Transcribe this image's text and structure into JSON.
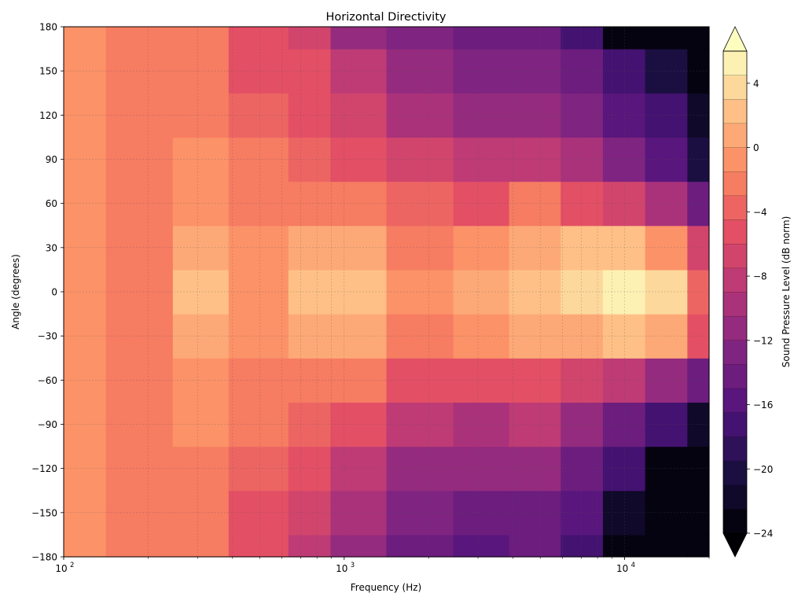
{
  "chart_data": {
    "type": "heatmap",
    "title": "Horizontal Directivity",
    "xlabel": "Frequency (Hz)",
    "ylabel": "Angle (degrees)",
    "x_scale": "log",
    "xlim": [
      100,
      20000
    ],
    "ylim": [
      -180,
      180
    ],
    "x_ticks": [
      {
        "value": 100,
        "base": "10",
        "exp": "2"
      },
      {
        "value": 1000,
        "base": "10",
        "exp": "3"
      },
      {
        "value": 10000,
        "base": "10",
        "exp": "4"
      }
    ],
    "y_ticks": [
      180,
      150,
      120,
      90,
      60,
      30,
      0,
      -30,
      -60,
      -90,
      -120,
      -150,
      -180
    ],
    "y_tick_labels": [
      "180",
      "150",
      "120",
      "90",
      "60",
      "30",
      "0",
      "−30",
      "−60",
      "−90",
      "−120",
      "−150",
      "−180"
    ],
    "grid": true,
    "colormap": "magma",
    "colorbar": {
      "label": "Sound Pressure Level (dB norm)",
      "range": [
        -24,
        6
      ],
      "level_step": 1.5,
      "extend": "both",
      "ticks": [
        4,
        0,
        -4,
        -8,
        -12,
        -16,
        -20,
        -24
      ],
      "tick_labels": [
        "4",
        "0",
        "−4",
        "−8",
        "−12",
        "−16",
        "−20",
        "−24"
      ]
    },
    "grid_x": [
      100,
      200,
      300,
      500,
      800,
      1000,
      2000,
      3000,
      5000,
      7000,
      10000,
      14000,
      20000
    ],
    "grid_y": [
      -180,
      -150,
      -120,
      -90,
      -60,
      -30,
      0,
      30,
      60,
      90,
      120,
      150,
      180
    ],
    "values": [
      [
        -1.5,
        -2.5,
        -3,
        -5,
        -8,
        -12,
        -14,
        -16,
        -15,
        -18,
        -24,
        -24,
        -24
      ],
      [
        -1.5,
        -2.5,
        -3,
        -5,
        -7,
        -10,
        -13,
        -14,
        -14,
        -16,
        -22,
        -24,
        -24
      ],
      [
        -1.5,
        -2.5,
        -2.5,
        -4,
        -6,
        -8,
        -11,
        -12,
        -12,
        -14,
        -18,
        -24,
        -24
      ],
      [
        -1.5,
        -2.5,
        -1.5,
        -3,
        -4,
        -6,
        -9,
        -10,
        -9,
        -11,
        -14,
        -18,
        -22
      ],
      [
        -1.5,
        -2.5,
        -1,
        -2,
        -2,
        -3,
        -5,
        -6,
        -5,
        -7,
        -9,
        -11,
        -15
      ],
      [
        -1.5,
        -2.5,
        0.5,
        -1.5,
        0.5,
        0,
        -2,
        -1.5,
        0,
        0,
        1.5,
        0,
        -6
      ],
      [
        -1.5,
        -2,
        1.5,
        -1.5,
        1.5,
        1.5,
        -1.5,
        0,
        1.5,
        3,
        5,
        4,
        -4
      ],
      [
        -1.5,
        -2.5,
        0.5,
        -1.5,
        0.5,
        0,
        -2,
        -1.5,
        0,
        1.5,
        1.5,
        -1,
        -7
      ],
      [
        -1.5,
        -2.5,
        -1,
        -2,
        -2,
        -3,
        -4,
        -5,
        -3,
        -5,
        -7,
        -10,
        -14
      ],
      [
        -1.5,
        -2.5,
        -1.5,
        -3,
        -3.5,
        -5,
        -7,
        -8,
        -8,
        -10,
        -13,
        -16,
        -20
      ],
      [
        -1.5,
        -2.5,
        -2.5,
        -4,
        -5,
        -7,
        -10,
        -11,
        -11,
        -13,
        -16,
        -18,
        -22
      ],
      [
        -1.5,
        -2.5,
        -3,
        -5,
        -6,
        -9,
        -12,
        -13,
        -13,
        -15,
        -18,
        -20,
        -24
      ],
      [
        -1.5,
        -2.5,
        -3,
        -5,
        -7,
        -11,
        -13,
        -15,
        -15,
        -18,
        -24,
        -24,
        -24
      ]
    ]
  }
}
